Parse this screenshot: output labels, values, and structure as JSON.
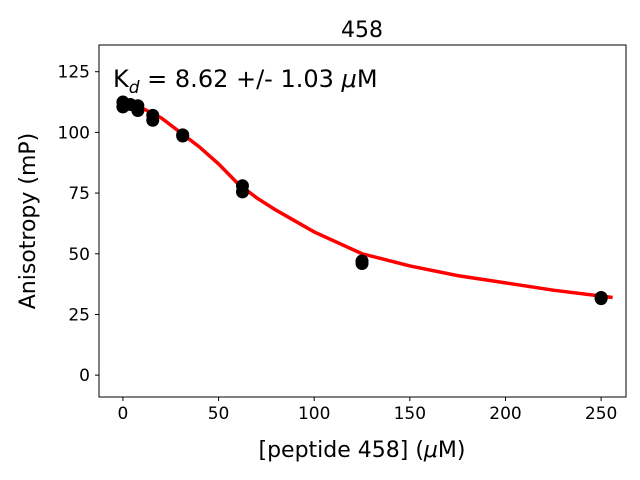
{
  "chart_data": {
    "type": "scatter",
    "title": "458",
    "annotation": [
      "K",
      "d",
      " = 8.62 +/- 1.03 ",
      "μ",
      "M"
    ],
    "xlabel": [
      "[peptide 458] (",
      "μ",
      "M)"
    ],
    "ylabel": "Anisotropy (mP)",
    "xlim": [
      -12.5,
      263
    ],
    "xticks": [
      0,
      50,
      100,
      150,
      200,
      250
    ],
    "ylim": [
      -9,
      136
    ],
    "yticks": [
      0,
      25,
      50,
      75,
      100,
      125
    ],
    "grid": false,
    "series": [
      {
        "kind": "line",
        "color": "#ff0000",
        "x": [
          0,
          10,
          20,
          30,
          40,
          50,
          60,
          70,
          80,
          100,
          125,
          150,
          175,
          200,
          225,
          256
        ],
        "values": [
          112,
          110,
          106,
          100,
          94,
          87,
          79,
          73,
          68,
          59,
          50,
          45,
          41,
          38,
          35,
          32
        ]
      },
      {
        "kind": "points",
        "color": "#000000",
        "x": [
          0,
          0,
          3.9,
          7.8,
          7.8,
          15.6,
          15.6,
          31.25,
          31.25,
          62.5,
          62.5,
          125,
          125,
          250,
          250
        ],
        "values": [
          112.5,
          110.5,
          111.5,
          111,
          109,
          107,
          105,
          99,
          98.5,
          78,
          75.5,
          47,
          46,
          32,
          31.5
        ]
      }
    ]
  }
}
